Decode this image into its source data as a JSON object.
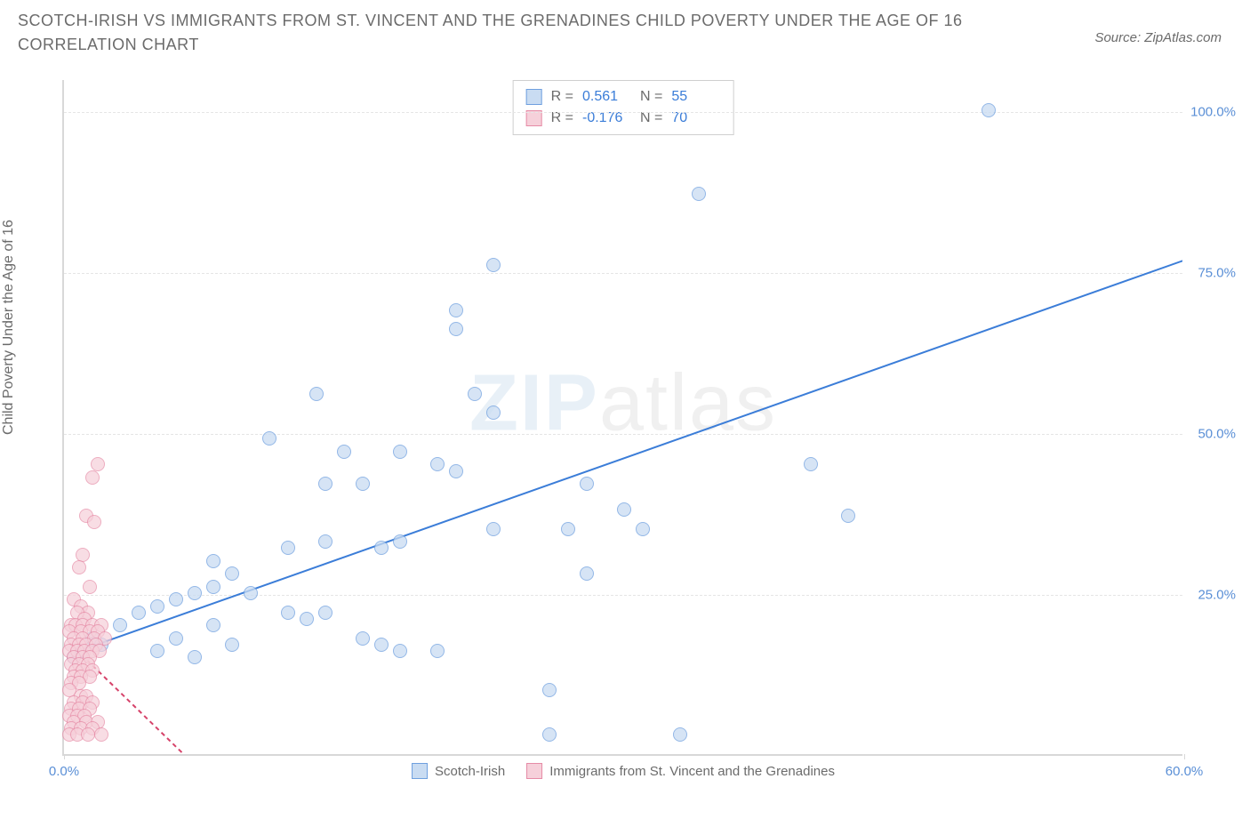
{
  "title": "SCOTCH-IRISH VS IMMIGRANTS FROM ST. VINCENT AND THE GRENADINES CHILD POVERTY UNDER THE AGE OF 16 CORRELATION CHART",
  "source": "Source: ZipAtlas.com",
  "y_axis_label": "Child Poverty Under the Age of 16",
  "watermark_a": "ZIP",
  "watermark_b": "atlas",
  "chart": {
    "type": "scatter",
    "xlim": [
      0,
      60
    ],
    "ylim": [
      0,
      105
    ],
    "background_color": "#ffffff",
    "grid_color": "#e5e5e5",
    "axis_color": "#d8d8d8",
    "tick_label_color": "#5a8fd6",
    "y_ticks": [
      25,
      50,
      75,
      100
    ],
    "y_tick_labels": [
      "25.0%",
      "50.0%",
      "75.0%",
      "100.0%"
    ],
    "x_ticks": [
      0,
      60
    ],
    "x_tick_labels": [
      "0.0%",
      "60.0%"
    ],
    "stat_legend": {
      "rows": [
        {
          "r_label": "R =",
          "r_value": "0.561",
          "n_label": "N =",
          "n_value": "55",
          "fill": "#c9dcf2",
          "stroke": "#6fa0df"
        },
        {
          "r_label": "R =",
          "r_value": "-0.176",
          "n_label": "N =",
          "n_value": "70",
          "fill": "#f6d0da",
          "stroke": "#e68ba6"
        }
      ]
    },
    "series_legend": [
      {
        "label": "Scotch-Irish",
        "fill": "#c9dcf2",
        "stroke": "#6fa0df"
      },
      {
        "label": "Immigrants from St. Vincent and the Grenadines",
        "fill": "#f6d0da",
        "stroke": "#e68ba6"
      }
    ],
    "series": [
      {
        "name": "Scotch-Irish",
        "fill": "#c9dcf2",
        "stroke": "#6fa0df",
        "opacity": 0.75,
        "marker_radius": 8,
        "trend": {
          "x1": 0.5,
          "y1": 16,
          "x2": 60,
          "y2": 77,
          "dashed": false,
          "color": "#3b7dd8",
          "width": 2
        },
        "points": [
          [
            49.5,
            100
          ],
          [
            34,
            87
          ],
          [
            23,
            76
          ],
          [
            21,
            69
          ],
          [
            21,
            66
          ],
          [
            13.5,
            56
          ],
          [
            22,
            56
          ],
          [
            23,
            53
          ],
          [
            11,
            49
          ],
          [
            15,
            47
          ],
          [
            18,
            47
          ],
          [
            20,
            45
          ],
          [
            21,
            44
          ],
          [
            40,
            45
          ],
          [
            28,
            42
          ],
          [
            30,
            38
          ],
          [
            14,
            42
          ],
          [
            16,
            42
          ],
          [
            42,
            37
          ],
          [
            27,
            35
          ],
          [
            31,
            35
          ],
          [
            23,
            35
          ],
          [
            18,
            33
          ],
          [
            14,
            33
          ],
          [
            12,
            32
          ],
          [
            28,
            28
          ],
          [
            17,
            32
          ],
          [
            8,
            30
          ],
          [
            9,
            28
          ],
          [
            10,
            25
          ],
          [
            8,
            26
          ],
          [
            7,
            25
          ],
          [
            6,
            24
          ],
          [
            5,
            23
          ],
          [
            4,
            22
          ],
          [
            3,
            20
          ],
          [
            12,
            22
          ],
          [
            13,
            21
          ],
          [
            14,
            22
          ],
          [
            6,
            18
          ],
          [
            8,
            20
          ],
          [
            16,
            18
          ],
          [
            17,
            17
          ],
          [
            9,
            17
          ],
          [
            7,
            15
          ],
          [
            5,
            16
          ],
          [
            18,
            16
          ],
          [
            20,
            16
          ],
          [
            1.5,
            18
          ],
          [
            1,
            16
          ],
          [
            2,
            17
          ],
          [
            0.5,
            15
          ],
          [
            26,
            10
          ],
          [
            33,
            3
          ],
          [
            26,
            3
          ]
        ]
      },
      {
        "name": "Immigrants from St. Vincent and the Grenadines",
        "fill": "#f6d0da",
        "stroke": "#e68ba6",
        "opacity": 0.7,
        "marker_radius": 8,
        "trend": {
          "x1": 0.3,
          "y1": 17.5,
          "x2": 6.5,
          "y2": 0,
          "dashed": true,
          "color": "#d6436a",
          "width": 2
        },
        "points": [
          [
            1.8,
            45
          ],
          [
            1.5,
            43
          ],
          [
            1.2,
            37
          ],
          [
            1.6,
            36
          ],
          [
            1.0,
            31
          ],
          [
            0.8,
            29
          ],
          [
            1.4,
            26
          ],
          [
            0.5,
            24
          ],
          [
            0.9,
            23
          ],
          [
            1.3,
            22
          ],
          [
            0.7,
            22
          ],
          [
            1.1,
            21
          ],
          [
            0.4,
            20
          ],
          [
            0.6,
            20
          ],
          [
            1.0,
            20
          ],
          [
            1.5,
            20
          ],
          [
            2.0,
            20
          ],
          [
            0.3,
            19
          ],
          [
            0.9,
            19
          ],
          [
            1.4,
            19
          ],
          [
            1.8,
            19
          ],
          [
            0.5,
            18
          ],
          [
            1.0,
            18
          ],
          [
            1.6,
            18
          ],
          [
            2.2,
            18
          ],
          [
            0.4,
            17
          ],
          [
            0.8,
            17
          ],
          [
            1.2,
            17
          ],
          [
            1.7,
            17
          ],
          [
            0.3,
            16
          ],
          [
            0.7,
            16
          ],
          [
            1.1,
            16
          ],
          [
            1.5,
            16
          ],
          [
            1.9,
            16
          ],
          [
            0.5,
            15
          ],
          [
            1.0,
            15
          ],
          [
            1.4,
            15
          ],
          [
            0.4,
            14
          ],
          [
            0.8,
            14
          ],
          [
            1.3,
            14
          ],
          [
            0.6,
            13
          ],
          [
            1.0,
            13
          ],
          [
            1.5,
            13
          ],
          [
            0.5,
            12
          ],
          [
            0.9,
            12
          ],
          [
            1.4,
            12
          ],
          [
            0.4,
            11
          ],
          [
            0.8,
            11
          ],
          [
            0.3,
            10
          ],
          [
            0.9,
            9
          ],
          [
            1.2,
            9
          ],
          [
            0.5,
            8
          ],
          [
            1.0,
            8
          ],
          [
            1.5,
            8
          ],
          [
            0.4,
            7
          ],
          [
            0.8,
            7
          ],
          [
            1.4,
            7
          ],
          [
            0.3,
            6
          ],
          [
            0.7,
            6
          ],
          [
            1.1,
            6
          ],
          [
            0.5,
            5
          ],
          [
            1.2,
            5
          ],
          [
            1.8,
            5
          ],
          [
            0.4,
            4
          ],
          [
            0.9,
            4
          ],
          [
            1.5,
            4
          ],
          [
            0.3,
            3
          ],
          [
            0.7,
            3
          ],
          [
            1.3,
            3
          ],
          [
            2.0,
            3
          ]
        ]
      }
    ]
  }
}
